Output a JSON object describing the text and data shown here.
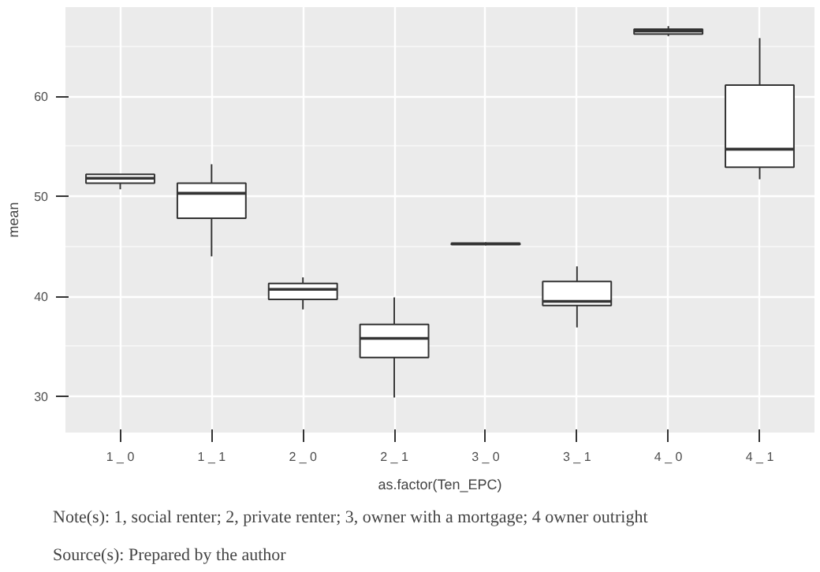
{
  "chart_data": {
    "type": "box",
    "xlabel": "as.factor(Ten_EPC)",
    "ylabel": "mean",
    "categories": [
      "1 _ 0",
      "1 _ 1",
      "2 _ 0",
      "2 _ 1",
      "3 _ 0",
      "3 _ 1",
      "4 _ 0",
      "4 _ 1"
    ],
    "boxes": [
      {
        "low": 50.7,
        "q1": 51.3,
        "median": 51.8,
        "q3": 52.2,
        "high": 52.2
      },
      {
        "low": 44.0,
        "q1": 47.8,
        "median": 50.3,
        "q3": 51.3,
        "high": 53.2
      },
      {
        "low": 38.7,
        "q1": 39.7,
        "median": 40.7,
        "q3": 41.3,
        "high": 41.9
      },
      {
        "low": 29.9,
        "q1": 33.9,
        "median": 35.8,
        "q3": 37.2,
        "high": 39.9
      },
      {
        "low": 45.1,
        "q1": 45.2,
        "median": 45.25,
        "q3": 45.3,
        "high": 45.4
      },
      {
        "low": 36.9,
        "q1": 39.1,
        "median": 39.5,
        "q3": 41.5,
        "high": 43.0
      },
      {
        "low": 66.0,
        "q1": 66.2,
        "median": 66.5,
        "q3": 66.7,
        "high": 67.0
      },
      {
        "low": 51.7,
        "q1": 52.9,
        "median": 54.7,
        "q3": 61.1,
        "high": 65.8
      }
    ],
    "color": "#ffffff",
    "ylim": [
      26.4,
      68.9
    ],
    "yticks": [
      30,
      40,
      50,
      60
    ],
    "grid": true,
    "annotations": [
      "Note(s): 1, social renter; 2, private renter; 3, owner with a mortgage; 4 owner outright",
      "Source(s): Prepared by the author"
    ]
  }
}
